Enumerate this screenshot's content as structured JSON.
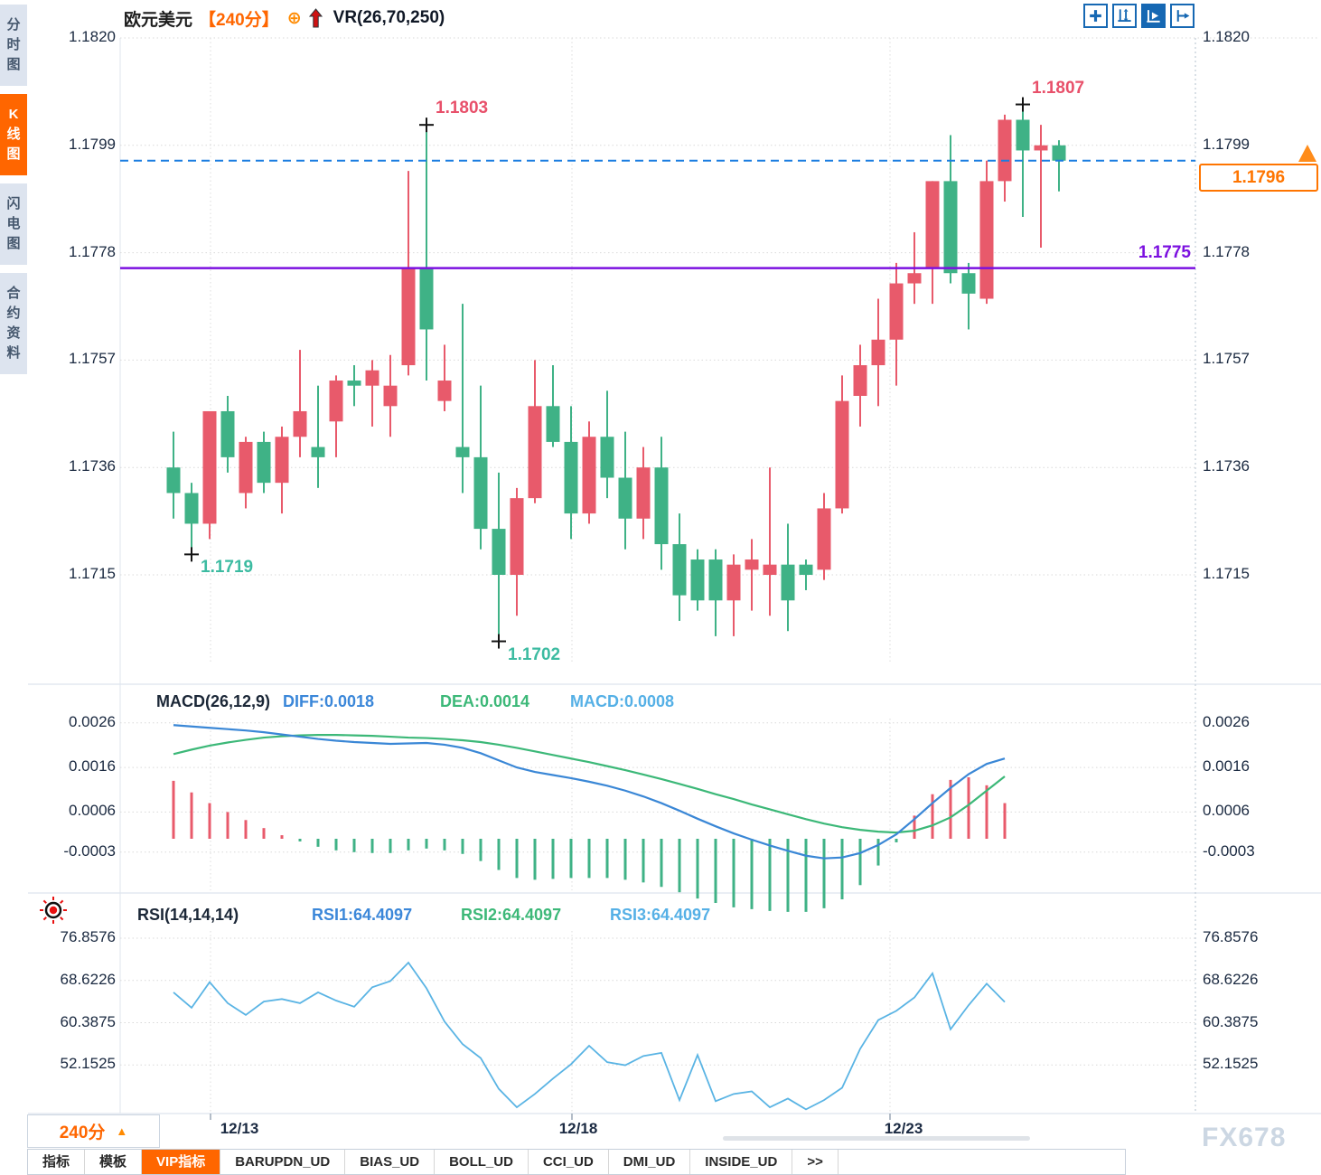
{
  "header": {
    "symbol": "欧元美元",
    "timeframe": "【240分】",
    "plus_icon": "⊕",
    "indicator": "VR(26,70,250)"
  },
  "sidebar": {
    "items": [
      {
        "label": "分时图",
        "active": false
      },
      {
        "label": "K线图",
        "active": true
      },
      {
        "label": "闪电图",
        "active": false
      },
      {
        "label": "合约资料",
        "active": false
      }
    ]
  },
  "toolbar": {
    "icons": [
      "crosshair-tool",
      "axis-range",
      "axis-play",
      "pan-right"
    ]
  },
  "colors": {
    "up": "#e85a6b",
    "down": "#3fb286",
    "accent_orange": "#ff6600",
    "dashed_blue": "#1a7de0",
    "purple_line": "#7b10e0",
    "diff_blue": "#3a87d6",
    "dea_green": "#3cb878",
    "rsi_blue": "#5ab4e4",
    "label_red": "#e8506a",
    "label_green": "#3cbba1",
    "axis_text": "#1a2940"
  },
  "macd_panel": {
    "title": "MACD(26,12,9)",
    "diff": "DIFF:0.0018",
    "dea": "DEA:0.0014",
    "macd": "MACD:0.0008"
  },
  "rsi_panel": {
    "title": "RSI(14,14,14)",
    "rsi1": "RSI1:64.4097",
    "rsi2": "RSI2:64.4097",
    "rsi3": "RSI3:64.4097"
  },
  "footer": {
    "timeframe": "240分",
    "up_arrow": "▲"
  },
  "bottom_tabs": [
    {
      "label": "指标",
      "active": false
    },
    {
      "label": "模板",
      "active": false
    },
    {
      "label": "VIP指标",
      "active": true
    },
    {
      "label": "BARUPDN_UD",
      "active": false
    },
    {
      "label": "BIAS_UD",
      "active": false
    },
    {
      "label": "BOLL_UD",
      "active": false
    },
    {
      "label": "CCI_UD",
      "active": false
    },
    {
      "label": "DMI_UD",
      "active": false
    },
    {
      "label": "INSIDE_UD",
      "active": false
    },
    {
      "label": ">>",
      "active": false
    }
  ],
  "watermark": "FX678",
  "chart_data": [
    {
      "type": "candlestick",
      "title": "欧元美元 240分",
      "ylim": [
        1.1715,
        1.182
      ],
      "y_ticks": [
        "1.1820",
        "1.1799",
        "1.1778",
        "1.1757",
        "1.1736",
        "1.1715"
      ],
      "x_ticks": [
        "12/13",
        "12/18",
        "12/23"
      ],
      "ohlc": [
        [
          1.1736,
          1.1743,
          1.1726,
          1.1731
        ],
        [
          1.1731,
          1.1733,
          1.1719,
          1.1725
        ],
        [
          1.1725,
          1.1747,
          1.1722,
          1.1747
        ],
        [
          1.1747,
          1.175,
          1.1735,
          1.1738
        ],
        [
          1.1731,
          1.1742,
          1.1728,
          1.1741
        ],
        [
          1.1741,
          1.1743,
          1.1731,
          1.1733
        ],
        [
          1.1733,
          1.1744,
          1.1727,
          1.1742
        ],
        [
          1.1742,
          1.1759,
          1.1738,
          1.1747
        ],
        [
          1.174,
          1.1752,
          1.1732,
          1.1738
        ],
        [
          1.1745,
          1.1754,
          1.1738,
          1.1753
        ],
        [
          1.1753,
          1.1756,
          1.1748,
          1.1752
        ],
        [
          1.1752,
          1.1757,
          1.1744,
          1.1755
        ],
        [
          1.1748,
          1.1758,
          1.1742,
          1.1752
        ],
        [
          1.1756,
          1.1794,
          1.1754,
          1.1775
        ],
        [
          1.1775,
          1.1803,
          1.1753,
          1.1763
        ],
        [
          1.1749,
          1.176,
          1.1747,
          1.1753
        ],
        [
          1.174,
          1.1768,
          1.1731,
          1.1738
        ],
        [
          1.1738,
          1.1752,
          1.172,
          1.1724
        ],
        [
          1.1724,
          1.1735,
          1.1702,
          1.1715
        ],
        [
          1.1715,
          1.1732,
          1.1707,
          1.173
        ],
        [
          1.173,
          1.1757,
          1.1729,
          1.1748
        ],
        [
          1.1748,
          1.1756,
          1.174,
          1.1741
        ],
        [
          1.1741,
          1.1748,
          1.1722,
          1.1727
        ],
        [
          1.1727,
          1.1745,
          1.1725,
          1.1742
        ],
        [
          1.1742,
          1.1751,
          1.173,
          1.1734
        ],
        [
          1.1734,
          1.1743,
          1.172,
          1.1726
        ],
        [
          1.1726,
          1.174,
          1.1722,
          1.1736
        ],
        [
          1.1736,
          1.1742,
          1.1716,
          1.1721
        ],
        [
          1.1721,
          1.1727,
          1.1706,
          1.1711
        ],
        [
          1.1718,
          1.172,
          1.1708,
          1.171
        ],
        [
          1.1718,
          1.172,
          1.1703,
          1.171
        ],
        [
          1.171,
          1.1719,
          1.1703,
          1.1717
        ],
        [
          1.1716,
          1.1722,
          1.1708,
          1.1718
        ],
        [
          1.1715,
          1.1736,
          1.1707,
          1.1717
        ],
        [
          1.1717,
          1.1725,
          1.1704,
          1.171
        ],
        [
          1.1717,
          1.1718,
          1.1712,
          1.1715
        ],
        [
          1.1716,
          1.1731,
          1.1714,
          1.1728
        ],
        [
          1.1728,
          1.1754,
          1.1727,
          1.1749
        ],
        [
          1.175,
          1.176,
          1.1744,
          1.1756
        ],
        [
          1.1756,
          1.1769,
          1.1748,
          1.1761
        ],
        [
          1.1761,
          1.1776,
          1.1752,
          1.1772
        ],
        [
          1.1772,
          1.1782,
          1.1768,
          1.1774
        ],
        [
          1.1775,
          1.1792,
          1.1768,
          1.1792
        ],
        [
          1.1792,
          1.1801,
          1.1772,
          1.1774
        ],
        [
          1.1774,
          1.1776,
          1.1763,
          1.177
        ],
        [
          1.1769,
          1.1796,
          1.1768,
          1.1792
        ],
        [
          1.1792,
          1.1805,
          1.1788,
          1.1804
        ],
        [
          1.1804,
          1.1807,
          1.1785,
          1.1798
        ],
        [
          1.1798,
          1.1803,
          1.1779,
          1.1799
        ],
        [
          1.1799,
          1.18,
          1.179,
          1.1796
        ]
      ],
      "annotations": [
        {
          "label": "1.1803",
          "price": 1.1803,
          "index": 14,
          "side": "high"
        },
        {
          "label": "1.1807",
          "price": 1.1807,
          "index": 47,
          "side": "high"
        },
        {
          "label": "1.1719",
          "price": 1.1719,
          "index": 1,
          "side": "low"
        },
        {
          "label": "1.1702",
          "price": 1.1702,
          "index": 18,
          "side": "low"
        }
      ],
      "hlines": {
        "last_price": {
          "value": 1.1796,
          "label": "1.1796",
          "style": "dashed-blue"
        },
        "alert": {
          "value": 1.1775,
          "label": "1.1775",
          "style": "solid-purple"
        }
      }
    },
    {
      "type": "bar",
      "name": "MACD",
      "y_ticks": [
        "0.0026",
        "0.0016",
        "0.0006",
        "-0.0003"
      ],
      "diff": [
        0.00255,
        0.00252,
        0.00249,
        0.00246,
        0.00243,
        0.00239,
        0.00234,
        0.00229,
        0.00224,
        0.0022,
        0.00217,
        0.00215,
        0.00213,
        0.00214,
        0.00215,
        0.00211,
        0.00204,
        0.00192,
        0.00176,
        0.0016,
        0.0015,
        0.00143,
        0.00136,
        0.00128,
        0.00119,
        0.00108,
        0.00095,
        0.0008,
        0.00063,
        0.00045,
        0.00028,
        0.00012,
        -2e-05,
        -0.00015,
        -0.00027,
        -0.00038,
        -0.00044,
        -0.00042,
        -0.00032,
        -0.00014,
        0.0001,
        0.00044,
        0.0008,
        0.00114,
        0.00145,
        0.00168,
        0.0018
      ],
      "dea": [
        0.0019,
        0.002,
        0.00209,
        0.00216,
        0.00222,
        0.00227,
        0.0023,
        0.00232,
        0.00233,
        0.00233,
        0.00232,
        0.00231,
        0.00229,
        0.00227,
        0.00226,
        0.00224,
        0.00221,
        0.00217,
        0.00211,
        0.00204,
        0.00196,
        0.00188,
        0.0018,
        0.00172,
        0.00163,
        0.00154,
        0.00144,
        0.00134,
        0.00123,
        0.00112,
        0.001,
        0.00089,
        0.00077,
        0.00066,
        0.00055,
        0.00044,
        0.00034,
        0.00026,
        0.0002,
        0.00016,
        0.00014,
        0.00018,
        0.0003,
        0.00048,
        0.00076,
        0.00108,
        0.0014
      ],
      "hist": [
        0.0013,
        0.00104,
        0.0008,
        0.0006,
        0.00042,
        0.00024,
        8e-05,
        -6e-05,
        -0.00018,
        -0.00026,
        -0.0003,
        -0.00032,
        -0.00032,
        -0.00026,
        -0.00022,
        -0.00026,
        -0.00034,
        -0.0005,
        -0.0007,
        -0.00088,
        -0.00092,
        -0.0009,
        -0.00088,
        -0.00088,
        -0.00088,
        -0.00092,
        -0.00098,
        -0.00108,
        -0.0012,
        -0.00134,
        -0.00144,
        -0.00154,
        -0.00158,
        -0.00162,
        -0.00164,
        -0.00164,
        -0.00156,
        -0.00136,
        -0.00104,
        -0.0006,
        -8e-05,
        0.00052,
        0.001,
        0.00132,
        0.00138,
        0.0012,
        0.0008
      ]
    },
    {
      "type": "line",
      "name": "RSI",
      "y_ticks": [
        "76.8576",
        "68.6226",
        "60.3875",
        "52.1525"
      ],
      "rsi": [
        66.3,
        63.3,
        68.3,
        64.2,
        61.9,
        64.5,
        65.0,
        64.2,
        66.3,
        64.7,
        63.5,
        67.3,
        68.5,
        72.1,
        67.1,
        60.6,
        56.2,
        53.5,
        47.5,
        43.9,
        46.5,
        49.5,
        52.3,
        55.9,
        52.7,
        52.1,
        53.9,
        54.5,
        45.3,
        54.1,
        45.1,
        46.5,
        47.0,
        43.9,
        45.6,
        43.5,
        45.3,
        47.7,
        55.3,
        60.9,
        62.7,
        65.3,
        70.0,
        59.1,
        63.8,
        68.0,
        64.41
      ]
    }
  ]
}
